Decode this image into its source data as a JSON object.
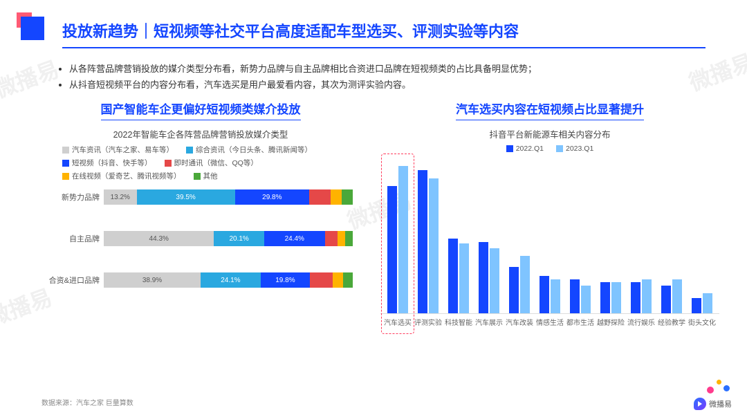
{
  "title": "投放新趋势｜短视频等社交平台高度适配车型选买、评测实验等内容",
  "bullets": [
    "从各阵营品牌营销投放的媒介类型分布看，新势力品牌与自主品牌相比合资进口品牌在短视频类的占比具备明显优势；",
    "从抖音短视频平台的内容分布看，汽车选买是用户最爱看内容，其次为测评实验内容。"
  ],
  "left_chart": {
    "title": "国产智能车企更偏好短视频类媒介投放",
    "subtitle": "2022年智能车企各阵营品牌营销投放媒介类型",
    "legend": [
      {
        "label": "汽车资讯（汽车之家、易车等）",
        "color": "#cfcfcf"
      },
      {
        "label": "综合资讯（今日头条、腾讯新闻等）",
        "color": "#2aa8e0"
      },
      {
        "label": "短视频（抖音、快手等）",
        "color": "#1446ff"
      },
      {
        "label": "即时通讯（微信、QQ等）",
        "color": "#e54848"
      },
      {
        "label": "在线视频（爱奇艺、腾讯视频等）",
        "color": "#ffb300"
      },
      {
        "label": "其他",
        "color": "#4aa83a"
      }
    ],
    "rows": [
      {
        "label": "新势力品牌",
        "segments": [
          {
            "pct": 13.2,
            "color": "#cfcfcf",
            "text": "13.2%",
            "light": true
          },
          {
            "pct": 39.5,
            "color": "#2aa8e0",
            "text": "39.5%"
          },
          {
            "pct": 29.8,
            "color": "#1446ff",
            "text": "29.8%"
          },
          {
            "pct": 8.5,
            "color": "#e54848",
            "text": ""
          },
          {
            "pct": 4.5,
            "color": "#ffb300",
            "text": ""
          },
          {
            "pct": 4.5,
            "color": "#4aa83a",
            "text": ""
          }
        ]
      },
      {
        "label": "自主品牌",
        "segments": [
          {
            "pct": 44.3,
            "color": "#cfcfcf",
            "text": "44.3%",
            "light": true
          },
          {
            "pct": 20.1,
            "color": "#2aa8e0",
            "text": "20.1%"
          },
          {
            "pct": 24.4,
            "color": "#1446ff",
            "text": "24.4%"
          },
          {
            "pct": 5.2,
            "color": "#e54848",
            "text": ""
          },
          {
            "pct": 3.0,
            "color": "#ffb300",
            "text": ""
          },
          {
            "pct": 3.0,
            "color": "#4aa83a",
            "text": ""
          }
        ]
      },
      {
        "label": "合资&进口品牌",
        "segments": [
          {
            "pct": 38.9,
            "color": "#cfcfcf",
            "text": "38.9%",
            "light": true
          },
          {
            "pct": 24.1,
            "color": "#2aa8e0",
            "text": "24.1%"
          },
          {
            "pct": 19.8,
            "color": "#1446ff",
            "text": "19.8%"
          },
          {
            "pct": 9.2,
            "color": "#e54848",
            "text": ""
          },
          {
            "pct": 4.0,
            "color": "#ffb300",
            "text": ""
          },
          {
            "pct": 4.0,
            "color": "#4aa83a",
            "text": ""
          }
        ]
      }
    ]
  },
  "right_chart": {
    "title": "汽车选买内容在短视频占比显著提升",
    "subtitle": "抖音平台新能源车相关内容分布",
    "series": [
      {
        "label": "2022.Q1",
        "color": "#1446ff"
      },
      {
        "label": "2023.Q1",
        "color": "#7fc4ff"
      }
    ],
    "max_value": 100,
    "categories": [
      {
        "label": "汽车选买",
        "v": [
          82,
          95
        ],
        "highlight": true
      },
      {
        "label": "评测实验",
        "v": [
          92,
          87
        ]
      },
      {
        "label": "科技智能",
        "v": [
          48,
          45
        ]
      },
      {
        "label": "汽车展示",
        "v": [
          46,
          42
        ]
      },
      {
        "label": "汽车改装",
        "v": [
          30,
          37
        ]
      },
      {
        "label": "情感生活",
        "v": [
          24,
          22
        ]
      },
      {
        "label": "都市生活",
        "v": [
          22,
          18
        ]
      },
      {
        "label": "越野探险",
        "v": [
          20,
          20
        ]
      },
      {
        "label": "流行娱乐",
        "v": [
          20,
          22
        ]
      },
      {
        "label": "经验教学",
        "v": [
          18,
          22
        ]
      },
      {
        "label": "街头文化",
        "v": [
          10,
          13
        ]
      }
    ]
  },
  "source": "数据来源：汽车之家   巨量算数",
  "brand": "微播易",
  "watermark": "微播易"
}
